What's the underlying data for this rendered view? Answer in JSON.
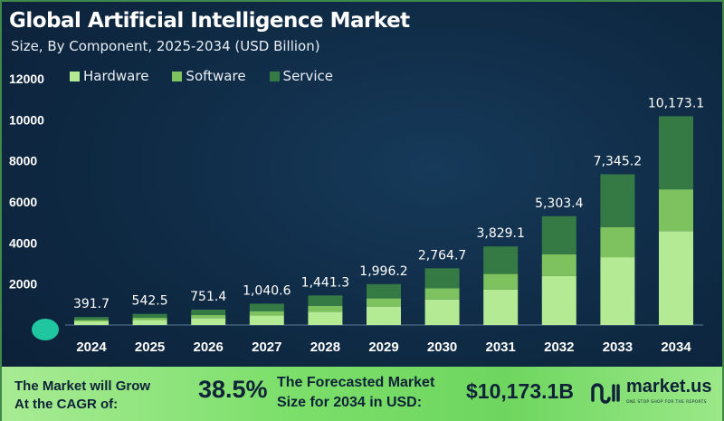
{
  "title": "Global Artificial Intelligence Market",
  "subtitle": "Size, By Component, 2025-2034 (USD Billion)",
  "colors": {
    "hardware": "#b4ea94",
    "software": "#7dc25f",
    "service": "#357a45",
    "accent_marker": "#1fc6a0"
  },
  "chart_data": {
    "type": "bar",
    "stacked": true,
    "title": "Global Artificial Intelligence Market",
    "subtitle": "Size, By Component, 2025-2034 (USD Billion)",
    "categories": [
      "2024",
      "2025",
      "2026",
      "2027",
      "2028",
      "2029",
      "2030",
      "2031",
      "2032",
      "2033",
      "2034"
    ],
    "totals": [
      391.7,
      542.5,
      751.4,
      1040.6,
      1441.3,
      1996.2,
      2764.7,
      3829.1,
      5303.4,
      7345.2,
      10173.1
    ],
    "total_labels": [
      "391.7",
      "542.5",
      "751.4",
      "1,040.6",
      "1,441.3",
      "1,996.2",
      "2,764.7",
      "3,829.1",
      "5,303.4",
      "7,345.2",
      "10,173.1"
    ],
    "series": [
      {
        "name": "Hardware",
        "values": [
          176.3,
          244.1,
          338.1,
          468.3,
          648.6,
          898.3,
          1244.1,
          1723.1,
          2386.5,
          3305.3,
          4577.9
        ]
      },
      {
        "name": "Software",
        "values": [
          78.3,
          108.5,
          150.3,
          208.1,
          288.3,
          399.2,
          552.9,
          765.8,
          1060.7,
          1469.0,
          2034.6
        ]
      },
      {
        "name": "Service",
        "values": [
          137.1,
          189.9,
          263.0,
          364.2,
          504.4,
          698.7,
          967.7,
          1340.2,
          1856.2,
          2570.9,
          3560.6
        ]
      }
    ],
    "yticks": [
      "2000",
      "4000",
      "6000",
      "8000",
      "10000",
      "12000"
    ],
    "ylim": [
      0,
      12000
    ],
    "grid": false,
    "legend": "top"
  },
  "footer": {
    "cagr_text_line1": "The Market will Grow",
    "cagr_text_line2": "At the CAGR of:",
    "cagr_value": "38.5%",
    "forecast_text_line1": "The Forecasted Market",
    "forecast_text_line2": "Size for 2034 in USD:",
    "forecast_value": "$10,173.1B",
    "brand": "market.us",
    "brand_tagline": "ONE STOP SHOP FOR THE REPORTS"
  }
}
